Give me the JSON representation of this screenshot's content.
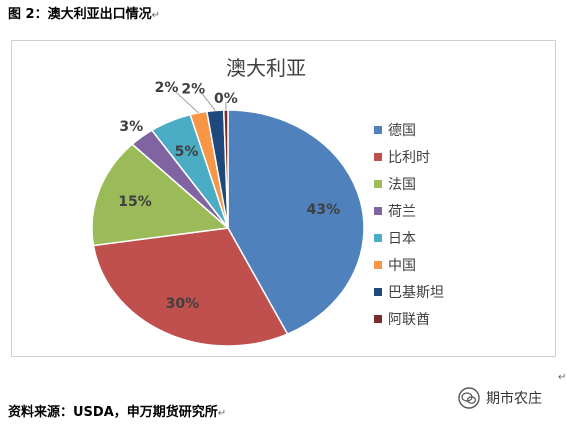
{
  "caption": "图 2：澳大利亚出口情况",
  "source": "资料来源：USDA，申万期货研究所",
  "watermark": "期市农庄",
  "chart_data": {
    "type": "pie",
    "title": "澳大利亚",
    "legend_position": "right",
    "slices": [
      {
        "name": "德国",
        "value": 43,
        "label": "43%",
        "color": "#4f81bd"
      },
      {
        "name": "比利时",
        "value": 30,
        "label": "30%",
        "color": "#c0504d"
      },
      {
        "name": "法国",
        "value": 15,
        "label": "15%",
        "color": "#9bbb59"
      },
      {
        "name": "荷兰",
        "value": 3,
        "label": "3%",
        "color": "#8064a2"
      },
      {
        "name": "日本",
        "value": 5,
        "label": "5%",
        "color": "#4bacc6"
      },
      {
        "name": "中国",
        "value": 2,
        "label": "2%",
        "color": "#f79646"
      },
      {
        "name": "巴基斯坦",
        "value": 2,
        "label": "2%",
        "color": "#1f497d"
      },
      {
        "name": "阿联酋",
        "value": 0.5,
        "label": "0%",
        "color": "#772c2a"
      }
    ]
  }
}
